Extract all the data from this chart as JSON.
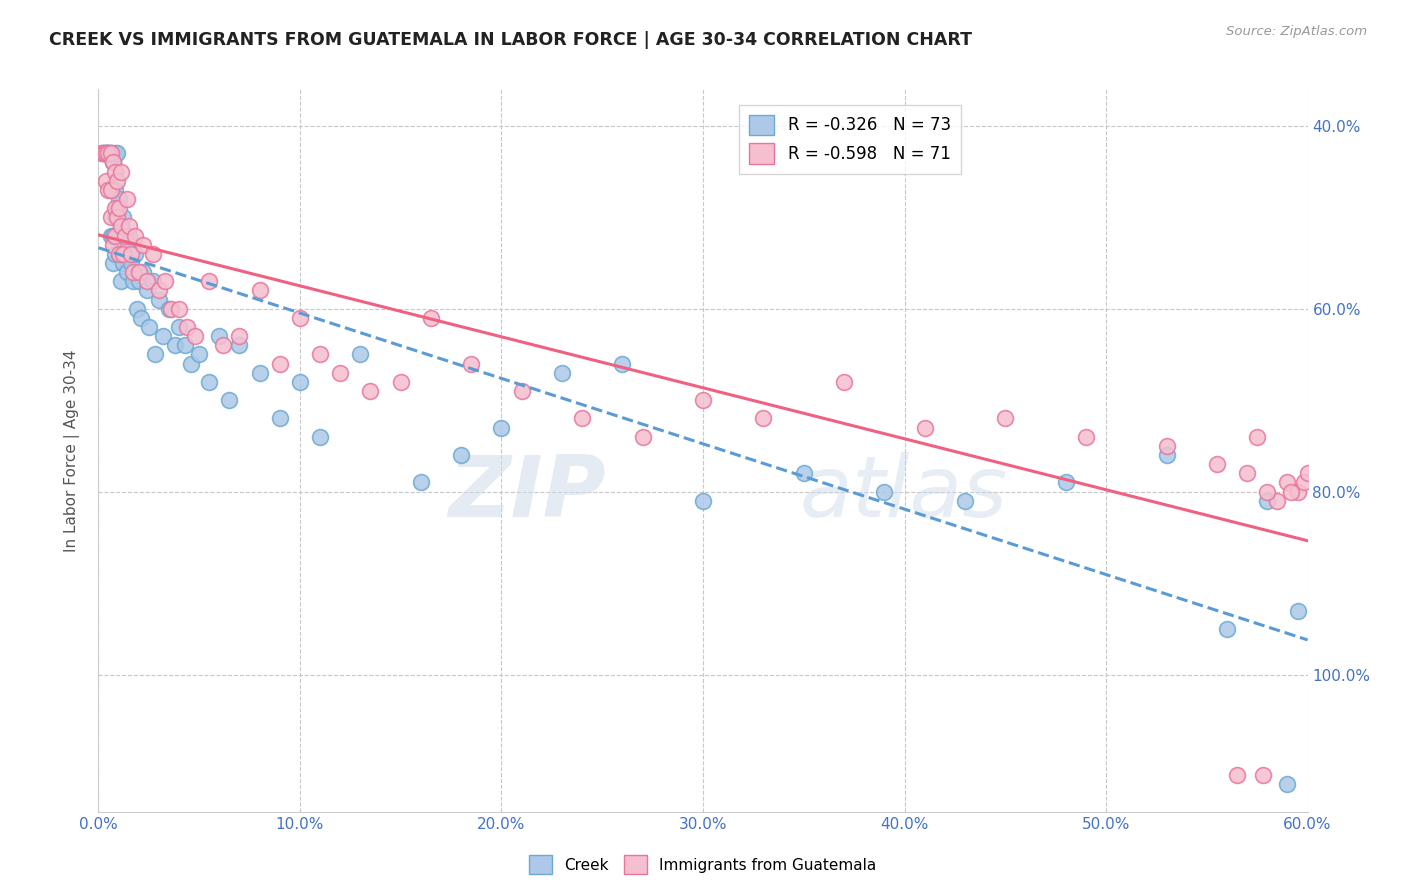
{
  "title": "CREEK VS IMMIGRANTS FROM GUATEMALA IN LABOR FORCE | AGE 30-34 CORRELATION CHART",
  "source": "Source: ZipAtlas.com",
  "ylabel": "In Labor Force | Age 30-34",
  "xmin": 0.0,
  "xmax": 0.6,
  "ymin": 0.25,
  "ymax": 1.04,
  "xtick_labels": [
    "0.0%",
    "10.0%",
    "20.0%",
    "30.0%",
    "40.0%",
    "50.0%",
    "60.0%"
  ],
  "xtick_values": [
    0.0,
    0.1,
    0.2,
    0.3,
    0.4,
    0.5,
    0.6
  ],
  "ytick_values": [
    0.4,
    0.6,
    0.8,
    1.0
  ],
  "right_ytick_labels": [
    "100.0%",
    "80.0%",
    "60.0%",
    "40.0%"
  ],
  "creek_color": "#adc8e8",
  "creek_edge_color": "#6baad4",
  "guatemala_color": "#f5bfcf",
  "guatemala_edge_color": "#e8769a",
  "legend_creek_label": "R = -0.326   N = 73",
  "legend_guatemala_label": "R = -0.598   N = 71",
  "creek_line_color": "#5b9bd5",
  "guatemala_line_color": "#f06080",
  "watermark_zip": "ZIP",
  "watermark_atlas": "atlas",
  "bottom_legend_creek": "Creek",
  "bottom_legend_guatemala": "Immigrants from Guatemala",
  "creek_scatter_x": [
    0.002,
    0.003,
    0.004,
    0.004,
    0.005,
    0.005,
    0.005,
    0.006,
    0.006,
    0.006,
    0.007,
    0.007,
    0.007,
    0.007,
    0.008,
    0.008,
    0.008,
    0.008,
    0.009,
    0.009,
    0.009,
    0.01,
    0.01,
    0.011,
    0.011,
    0.012,
    0.012,
    0.013,
    0.014,
    0.015,
    0.016,
    0.017,
    0.018,
    0.019,
    0.02,
    0.021,
    0.022,
    0.024,
    0.025,
    0.027,
    0.028,
    0.03,
    0.032,
    0.035,
    0.038,
    0.04,
    0.043,
    0.046,
    0.05,
    0.055,
    0.06,
    0.065,
    0.07,
    0.08,
    0.09,
    0.1,
    0.11,
    0.13,
    0.16,
    0.18,
    0.2,
    0.23,
    0.26,
    0.3,
    0.35,
    0.39,
    0.43,
    0.48,
    0.53,
    0.56,
    0.58,
    0.59,
    0.595
  ],
  "creek_scatter_y": [
    0.97,
    0.97,
    0.97,
    0.97,
    0.97,
    0.97,
    0.97,
    0.97,
    0.97,
    0.88,
    0.96,
    0.96,
    0.88,
    0.85,
    0.97,
    0.93,
    0.9,
    0.86,
    0.97,
    0.91,
    0.88,
    0.92,
    0.86,
    0.89,
    0.83,
    0.9,
    0.85,
    0.87,
    0.84,
    0.88,
    0.85,
    0.83,
    0.86,
    0.8,
    0.83,
    0.79,
    0.84,
    0.82,
    0.78,
    0.83,
    0.75,
    0.81,
    0.77,
    0.8,
    0.76,
    0.78,
    0.76,
    0.74,
    0.75,
    0.72,
    0.77,
    0.7,
    0.76,
    0.73,
    0.68,
    0.72,
    0.66,
    0.75,
    0.61,
    0.64,
    0.67,
    0.73,
    0.74,
    0.59,
    0.62,
    0.6,
    0.59,
    0.61,
    0.64,
    0.45,
    0.59,
    0.28,
    0.47
  ],
  "guatemala_scatter_x": [
    0.002,
    0.003,
    0.004,
    0.004,
    0.005,
    0.005,
    0.006,
    0.006,
    0.006,
    0.007,
    0.007,
    0.008,
    0.008,
    0.008,
    0.009,
    0.009,
    0.01,
    0.01,
    0.011,
    0.011,
    0.012,
    0.013,
    0.014,
    0.015,
    0.016,
    0.017,
    0.018,
    0.02,
    0.022,
    0.024,
    0.027,
    0.03,
    0.033,
    0.036,
    0.04,
    0.044,
    0.048,
    0.055,
    0.062,
    0.07,
    0.08,
    0.09,
    0.1,
    0.11,
    0.12,
    0.135,
    0.15,
    0.165,
    0.185,
    0.21,
    0.24,
    0.27,
    0.3,
    0.33,
    0.37,
    0.41,
    0.45,
    0.49,
    0.53,
    0.555,
    0.575,
    0.59,
    0.595,
    0.598,
    0.6,
    0.592,
    0.585,
    0.58,
    0.578,
    0.57,
    0.565
  ],
  "guatemala_scatter_y": [
    0.97,
    0.97,
    0.97,
    0.94,
    0.97,
    0.93,
    0.97,
    0.93,
    0.9,
    0.96,
    0.87,
    0.95,
    0.91,
    0.88,
    0.94,
    0.9,
    0.91,
    0.86,
    0.89,
    0.95,
    0.86,
    0.88,
    0.92,
    0.89,
    0.86,
    0.84,
    0.88,
    0.84,
    0.87,
    0.83,
    0.86,
    0.82,
    0.83,
    0.8,
    0.8,
    0.78,
    0.77,
    0.83,
    0.76,
    0.77,
    0.82,
    0.74,
    0.79,
    0.75,
    0.73,
    0.71,
    0.72,
    0.79,
    0.74,
    0.71,
    0.68,
    0.66,
    0.7,
    0.68,
    0.72,
    0.67,
    0.68,
    0.66,
    0.65,
    0.63,
    0.66,
    0.61,
    0.6,
    0.61,
    0.62,
    0.6,
    0.59,
    0.6,
    0.29,
    0.62,
    0.29
  ]
}
